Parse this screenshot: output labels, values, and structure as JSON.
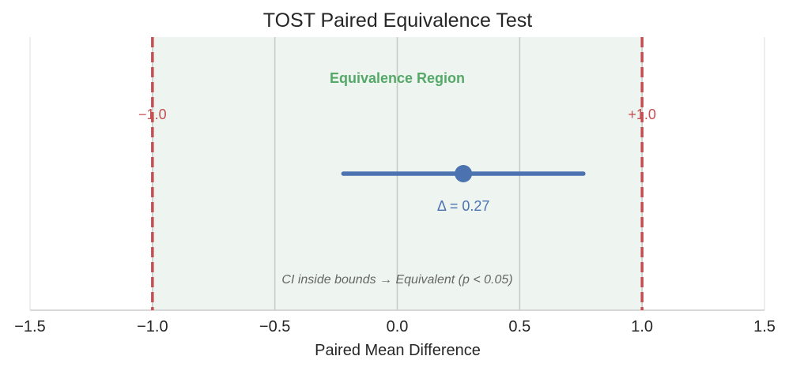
{
  "chart_data": {
    "type": "forest_interval",
    "title": "TOST Paired Equivalence Test",
    "xlabel": "Paired Mean Difference",
    "ylabel": "",
    "xlim": [
      -1.5,
      1.5
    ],
    "xticks": [
      -1.5,
      -1.0,
      -0.5,
      0.0,
      0.5,
      1.0,
      1.5
    ],
    "xtick_labels": [
      "−1.5",
      "−1.0",
      "−0.5",
      "0.0",
      "0.5",
      "1.0",
      "1.5"
    ],
    "grid": true,
    "equivalence_bounds": {
      "lower": -1.0,
      "upper": 1.0,
      "lower_label": "−1.0",
      "upper_label": "+1.0"
    },
    "equivalence_region_label": "Equivalence Region",
    "estimate": {
      "value": 0.27,
      "ci_lower": -0.22,
      "ci_upper": 0.76,
      "label": "Δ = 0.27"
    },
    "annotation": "CI inside bounds → Equivalent (p < 0.05)",
    "colors": {
      "region_fill": "#eef5f1",
      "bound_line": "#c44e52",
      "estimate": "#4c72b0",
      "region_label": "#55a868",
      "grid": "#c8ccc8",
      "note": "#666666"
    }
  }
}
